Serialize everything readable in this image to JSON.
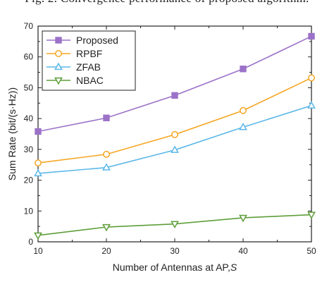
{
  "caption": "Fig. 2.  Convergence performance of proposed algorithm.",
  "chart_data": {
    "type": "line",
    "title": "",
    "xlabel": "Number of Antennas at AP,",
    "xlabel_symbol": "S",
    "ylabel": "Sum Rate (bit/(s·Hz))",
    "x": [
      10,
      20,
      30,
      40,
      50
    ],
    "xlim": [
      10,
      50
    ],
    "ylim": [
      0,
      70
    ],
    "xticks": [
      10,
      20,
      30,
      40,
      50
    ],
    "yticks": [
      0,
      10,
      20,
      30,
      40,
      50,
      60,
      70
    ],
    "grid": false,
    "legend_position": "top-left",
    "series": [
      {
        "name": "Proposed",
        "color": "#9b72c8",
        "marker": "square",
        "values": [
          35.8,
          40.2,
          47.5,
          56.1,
          66.7
        ]
      },
      {
        "name": "RPBF",
        "color": "#f5a623",
        "marker": "circle",
        "values": [
          25.6,
          28.4,
          34.8,
          42.6,
          53.2
        ]
      },
      {
        "name": "ZFAB",
        "color": "#5bb8e8",
        "marker": "triangle-up",
        "values": [
          22.2,
          24.1,
          29.8,
          37.2,
          44.2
        ]
      },
      {
        "name": "NBAC",
        "color": "#5e9e3a",
        "marker": "triangle-down",
        "values": [
          2.1,
          4.8,
          5.8,
          7.8,
          8.8
        ]
      }
    ]
  }
}
